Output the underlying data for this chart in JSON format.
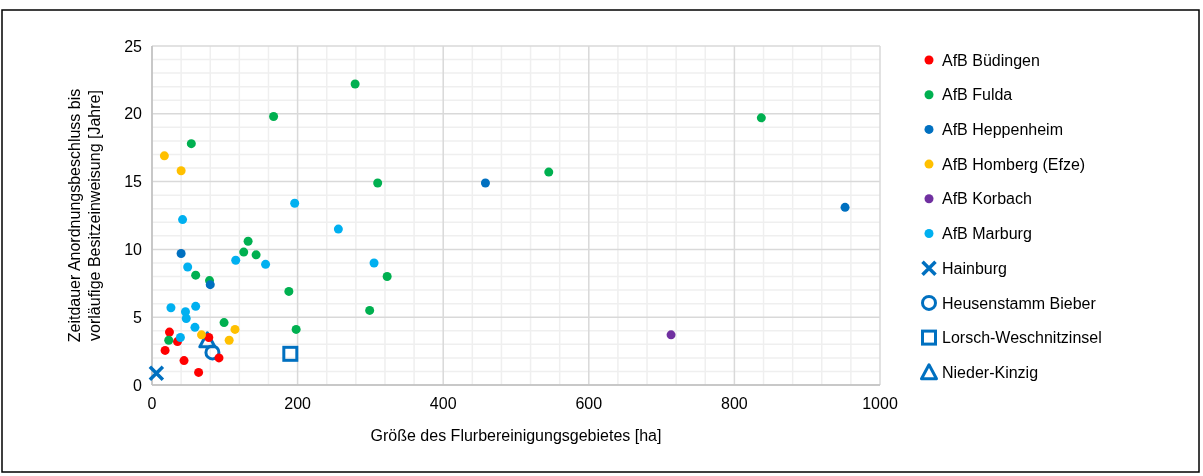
{
  "chart_data": {
    "type": "scatter",
    "xlabel": "Größe des Flurbereinigungsgebietes [ha]",
    "ylabel": "Zeitdauer Anordnungsbeschluss bis\nvorläufige Besitzeinweisung [Jahre]",
    "xlim": [
      0,
      1000
    ],
    "ylim": [
      0,
      25
    ],
    "xticks": [
      0,
      200,
      400,
      600,
      800,
      1000
    ],
    "yticks": [
      0,
      5,
      10,
      15,
      20,
      25
    ],
    "grid": true,
    "legend": "right",
    "marker": "circle",
    "series": [
      {
        "name": "AfB Büdingen",
        "color": "#ff0000",
        "x": [
          24,
          35,
          18,
          44,
          64,
          92,
          78
        ],
        "values": [
          3.9,
          3.2,
          2.55,
          1.8,
          0.93,
          2.0,
          3.5
        ]
      },
      {
        "name": "AfB Fulda",
        "color": "#00b050",
        "x": [
          54,
          310,
          132,
          126,
          143,
          323,
          60,
          79,
          188,
          299,
          99,
          198,
          23,
          279,
          167,
          837,
          545
        ],
        "values": [
          17.8,
          14.9,
          10.6,
          9.8,
          9.6,
          8.0,
          8.1,
          7.7,
          6.9,
          5.5,
          4.6,
          4.1,
          3.3,
          22.2,
          19.8,
          19.7,
          15.7
        ]
      },
      {
        "name": "AfB Heppenheim",
        "color": "#0070c0",
        "x": [
          40,
          80,
          458,
          952
        ],
        "values": [
          9.7,
          7.4,
          14.9,
          13.1
        ]
      },
      {
        "name": "AfB Homberg (Efze)",
        "color": "#ffc000",
        "x": [
          17,
          40,
          114,
          68,
          106
        ],
        "values": [
          16.9,
          15.8,
          4.1,
          3.7,
          3.3
        ]
      },
      {
        "name": "AfB Korbach",
        "color": "#7030a0",
        "x": [
          713
        ],
        "values": [
          3.7
        ]
      },
      {
        "name": "AfB Marburg",
        "color": "#00b0f0",
        "x": [
          196,
          42,
          256,
          115,
          156,
          305,
          49,
          26,
          46,
          47,
          60,
          59,
          39
        ],
        "values": [
          13.4,
          12.2,
          11.5,
          9.2,
          8.9,
          9.0,
          8.7,
          5.7,
          5.4,
          4.9,
          5.8,
          4.25,
          3.5
        ]
      },
      {
        "name": "Hainburg",
        "color": "#0070c0",
        "marker": "cross",
        "x": [
          6
        ],
        "values": [
          0.86
        ]
      },
      {
        "name": "Heusenstamm Bieber",
        "color": "#0070c0",
        "marker": "circle",
        "x": [
          83
        ],
        "values": [
          2.4
        ]
      },
      {
        "name": "Lorsch-Weschnitzinsel",
        "color": "#0070c0",
        "marker": "square",
        "x": [
          190
        ],
        "values": [
          2.3
        ]
      },
      {
        "name": "Nieder-Kinzig",
        "color": "#0070c0",
        "marker": "triangle",
        "x": [
          76
        ],
        "values": [
          3.3
        ]
      }
    ]
  }
}
